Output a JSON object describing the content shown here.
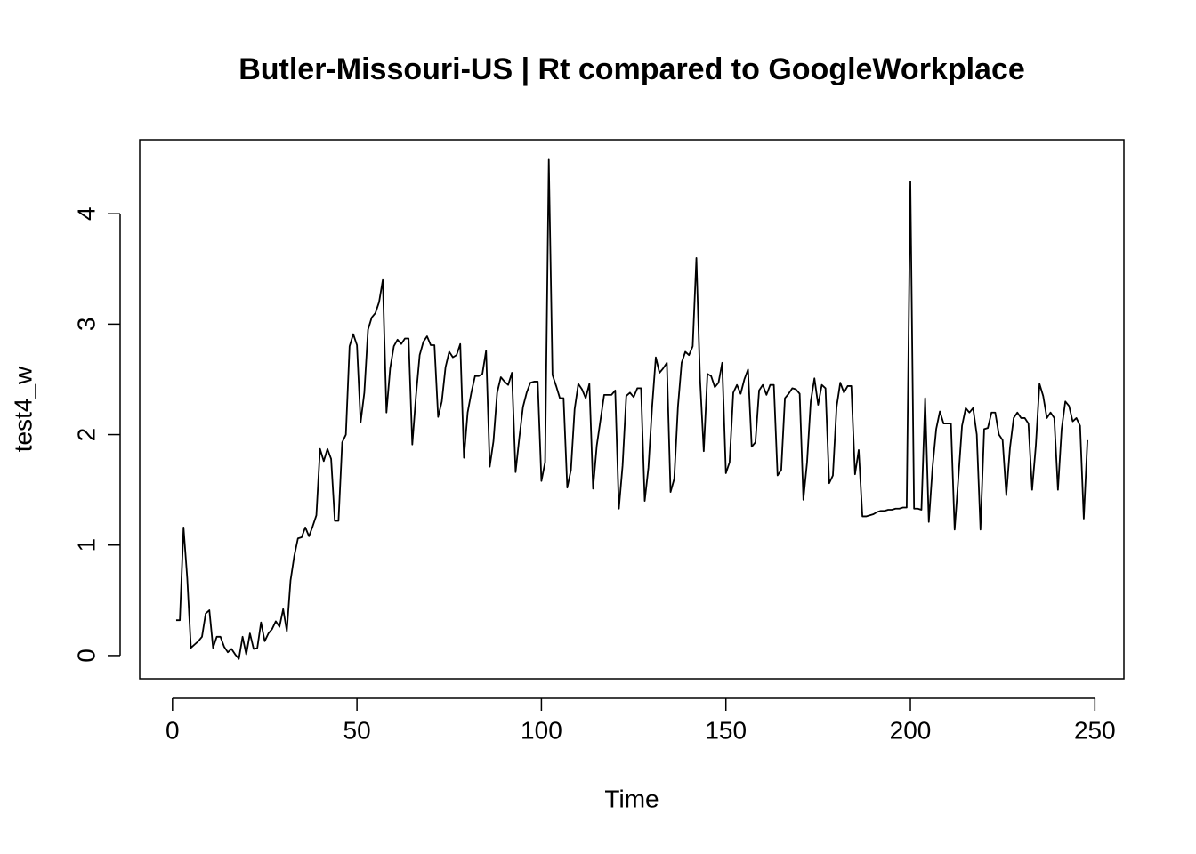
{
  "chart_data": {
    "type": "line",
    "title": "Butler-Missouri-US | Rt compared to GoogleWorkplace",
    "x_label": "Time",
    "y_label": "test4_w",
    "xlim": [
      -8.88,
      257.88
    ],
    "ylim": [
      -0.21,
      4.67
    ],
    "xticks": [
      0,
      50,
      100,
      150,
      200,
      250
    ],
    "yticks": [
      0,
      1,
      2,
      3,
      4
    ],
    "color": "#000000",
    "x": [
      1,
      2,
      3,
      4,
      5,
      6,
      7,
      8,
      9,
      10,
      11,
      12,
      13,
      14,
      15,
      16,
      17,
      18,
      19,
      20,
      21,
      22,
      23,
      24,
      25,
      26,
      27,
      28,
      29,
      30,
      31,
      32,
      33,
      34,
      35,
      36,
      37,
      38,
      39,
      40,
      41,
      42,
      43,
      44,
      45,
      46,
      47,
      48,
      49,
      50,
      51,
      52,
      53,
      54,
      55,
      56,
      57,
      58,
      59,
      60,
      61,
      62,
      63,
      64,
      65,
      66,
      67,
      68,
      69,
      70,
      71,
      72,
      73,
      74,
      75,
      76,
      77,
      78,
      79,
      80,
      81,
      82,
      83,
      84,
      85,
      86,
      87,
      88,
      89,
      90,
      91,
      92,
      93,
      94,
      95,
      96,
      97,
      98,
      99,
      100,
      101,
      102,
      103,
      104,
      105,
      106,
      107,
      108,
      109,
      110,
      111,
      112,
      113,
      114,
      115,
      116,
      117,
      118,
      119,
      120,
      121,
      122,
      123,
      124,
      125,
      126,
      127,
      128,
      129,
      130,
      131,
      132,
      133,
      134,
      135,
      136,
      137,
      138,
      139,
      140,
      141,
      142,
      143,
      144,
      145,
      146,
      147,
      148,
      149,
      150,
      151,
      152,
      153,
      154,
      155,
      156,
      157,
      158,
      159,
      160,
      161,
      162,
      163,
      164,
      165,
      166,
      167,
      168,
      169,
      170,
      171,
      172,
      173,
      174,
      175,
      176,
      177,
      178,
      179,
      180,
      181,
      182,
      183,
      184,
      185,
      186,
      187,
      188,
      189,
      190,
      191,
      192,
      193,
      194,
      195,
      196,
      197,
      198,
      199,
      200,
      201,
      202,
      203,
      204,
      205,
      206,
      207,
      208,
      209,
      210,
      211,
      212,
      213,
      214,
      215,
      216,
      217,
      218,
      219,
      220,
      221,
      222,
      223,
      224,
      225,
      226,
      227,
      228,
      229,
      230,
      231,
      232,
      233,
      234,
      235,
      236,
      237,
      238,
      239,
      240,
      241,
      242,
      243,
      244,
      245,
      246,
      247,
      248
    ],
    "values": [
      0.32,
      0.32,
      1.16,
      0.7,
      0.07,
      0.1,
      0.13,
      0.17,
      0.38,
      0.41,
      0.07,
      0.17,
      0.17,
      0.08,
      0.03,
      0.06,
      0.01,
      -0.03,
      0.17,
      0.01,
      0.2,
      0.06,
      0.07,
      0.3,
      0.13,
      0.2,
      0.24,
      0.31,
      0.26,
      0.42,
      0.22,
      0.68,
      0.9,
      1.06,
      1.07,
      1.16,
      1.08,
      1.17,
      1.27,
      1.87,
      1.76,
      1.87,
      1.78,
      1.22,
      1.22,
      1.93,
      2.0,
      2.8,
      2.91,
      2.81,
      2.11,
      2.38,
      2.95,
      3.06,
      3.1,
      3.2,
      3.4,
      2.2,
      2.6,
      2.8,
      2.86,
      2.82,
      2.87,
      2.87,
      1.91,
      2.35,
      2.72,
      2.84,
      2.89,
      2.81,
      2.81,
      2.16,
      2.3,
      2.61,
      2.75,
      2.7,
      2.72,
      2.82,
      1.79,
      2.2,
      2.38,
      2.53,
      2.53,
      2.55,
      2.76,
      1.71,
      1.94,
      2.38,
      2.52,
      2.48,
      2.45,
      2.56,
      1.66,
      1.97,
      2.25,
      2.38,
      2.47,
      2.48,
      2.48,
      1.58,
      1.75,
      4.49,
      2.54,
      2.44,
      2.33,
      2.33,
      1.52,
      1.68,
      2.23,
      2.46,
      2.41,
      2.33,
      2.46,
      1.51,
      1.9,
      2.13,
      2.36,
      2.36,
      2.36,
      2.4,
      1.33,
      1.72,
      2.35,
      2.38,
      2.34,
      2.42,
      2.42,
      1.4,
      1.7,
      2.25,
      2.7,
      2.56,
      2.6,
      2.65,
      1.48,
      1.6,
      2.25,
      2.65,
      2.75,
      2.72,
      2.8,
      3.6,
      2.5,
      1.85,
      2.55,
      2.53,
      2.43,
      2.47,
      2.65,
      1.65,
      1.75,
      2.38,
      2.45,
      2.37,
      2.5,
      2.59,
      1.89,
      1.93,
      2.4,
      2.45,
      2.36,
      2.45,
      2.45,
      1.63,
      1.68,
      2.33,
      2.37,
      2.42,
      2.41,
      2.37,
      1.41,
      1.75,
      2.3,
      2.51,
      2.27,
      2.45,
      2.42,
      1.56,
      1.63,
      2.25,
      2.47,
      2.38,
      2.44,
      2.44,
      1.64,
      1.86,
      1.26,
      1.26,
      1.27,
      1.28,
      1.3,
      1.31,
      1.31,
      1.32,
      1.32,
      1.33,
      1.33,
      1.34,
      1.34,
      4.29,
      1.33,
      1.33,
      1.32,
      2.33,
      1.21,
      1.7,
      2.05,
      2.21,
      2.1,
      2.1,
      2.1,
      1.14,
      1.6,
      2.08,
      2.24,
      2.2,
      2.24,
      2.0,
      1.14,
      2.05,
      2.06,
      2.2,
      2.2,
      2.0,
      1.95,
      1.45,
      1.88,
      2.15,
      2.2,
      2.15,
      2.15,
      2.1,
      1.5,
      1.9,
      2.46,
      2.35,
      2.15,
      2.2,
      2.15,
      1.5,
      2.05,
      2.3,
      2.26,
      2.12,
      2.15,
      2.08,
      1.24,
      1.95
    ]
  }
}
